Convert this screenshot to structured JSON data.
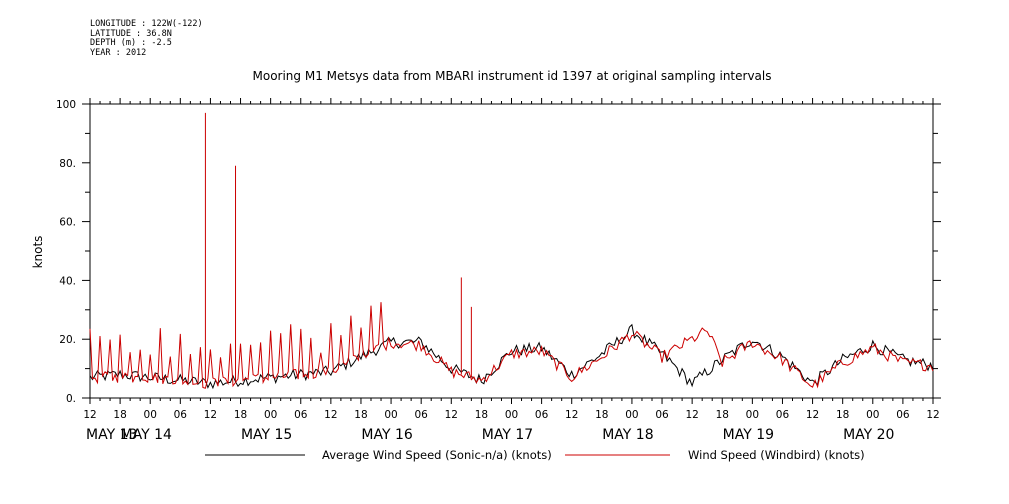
{
  "header": {
    "longitude": "LONGITUDE : 122W(-122)",
    "latitude": "LATITUDE : 36.8N",
    "depth": "DEPTH (m) : -2.5",
    "year": "YEAR : 2012"
  },
  "chart_data": {
    "type": "line",
    "title": "Mooring M1 Metsys data from MBARI instrument id 1397 at original sampling intervals",
    "ylabel": "knots",
    "xlabel": "",
    "ylim": [
      0,
      100
    ],
    "yticks": [
      0,
      20,
      40,
      60,
      80,
      100
    ],
    "ytick_labels": [
      "0.",
      "20.",
      "40.",
      "60.",
      "80.",
      "100"
    ],
    "xlim_hours_from_may13_12z": [
      0,
      168
    ],
    "x_hour_labels": [
      "12",
      "18",
      "00",
      "06",
      "12",
      "18",
      "00",
      "06",
      "12",
      "18",
      "00",
      "06",
      "12",
      "18",
      "00",
      "06",
      "12",
      "18",
      "00",
      "06",
      "12",
      "18",
      "00",
      "06",
      "12",
      "18",
      "00",
      "06",
      "12"
    ],
    "x_day_labels": [
      {
        "label": "MAY 13",
        "day": "13"
      },
      {
        "label": "MAY 14",
        "day": "14"
      },
      {
        "label": "MAY 15",
        "day": "15"
      },
      {
        "label": "MAY 16",
        "day": "16"
      },
      {
        "label": "MAY 17",
        "day": "17"
      },
      {
        "label": "MAY 18",
        "day": "18"
      },
      {
        "label": "MAY 19",
        "day": "19"
      },
      {
        "label": "MAY 20",
        "day": "20"
      }
    ],
    "series": [
      {
        "name": "Average Wind Speed (Sonic-n/a) (knots)",
        "color": "#000000",
        "x": [
          "May 13 12:00",
          "May 13 18:00",
          "May 14 00:00",
          "May 14 06:00",
          "May 14 12:00",
          "May 14 18:00",
          "May 15 00:00",
          "May 15 06:00",
          "May 15 12:00",
          "May 15 18:00",
          "May 16 00:00",
          "May 16 06:00",
          "May 16 12:00",
          "May 16 18:00",
          "May 17 00:00",
          "May 17 06:00",
          "May 17 12:00",
          "May 17 18:00",
          "May 18 00:00",
          "May 18 06:00",
          "May 18 12:00",
          "May 18 18:00",
          "May 19 00:00",
          "May 19 06:00",
          "May 19 12:00",
          "May 19 18:00",
          "May 20 00:00",
          "May 20 06:00",
          "May 20 12:00"
        ],
        "values": [
          7,
          8,
          7,
          6,
          5,
          6,
          7,
          8,
          9,
          14,
          19,
          19,
          10,
          6,
          16,
          17,
          8,
          15,
          23,
          15,
          5,
          13,
          20,
          14,
          5,
          13,
          18,
          13,
          11
        ]
      },
      {
        "name": "Wind Speed (Windbird) (knots)",
        "color": "#cc0000",
        "x": [
          "May 13 12:00",
          "May 13 18:00",
          "May 14 00:00",
          "May 14 06:00",
          "May 14 11:00",
          "May 14 12:00",
          "May 14 17:00",
          "May 14 18:00",
          "May 15 00:00",
          "May 15 06:00",
          "May 15 12:00",
          "May 15 18:00",
          "May 16 00:00",
          "May 16 06:00",
          "May 16 12:00",
          "May 16 14:00",
          "May 16 16:00",
          "May 16 18:00",
          "May 17 00:00",
          "May 17 06:00",
          "May 17 12:00",
          "May 17 18:00",
          "May 18 00:00",
          "May 18 06:00",
          "May 18 15:00",
          "May 18 18:00",
          "May 19 00:00",
          "May 19 06:00",
          "May 19 12:00",
          "May 19 18:00",
          "May 20 00:00",
          "May 20 06:00",
          "May 20 12:00"
        ],
        "values": [
          7,
          7,
          7,
          6,
          97,
          5,
          79,
          6,
          7,
          8,
          9,
          14,
          19,
          18,
          9,
          41,
          31,
          6,
          15,
          16,
          7,
          14,
          22,
          14,
          23,
          12,
          19,
          13,
          4,
          12,
          17,
          12,
          11
        ]
      }
    ],
    "legend": "bottom",
    "grid": false
  }
}
